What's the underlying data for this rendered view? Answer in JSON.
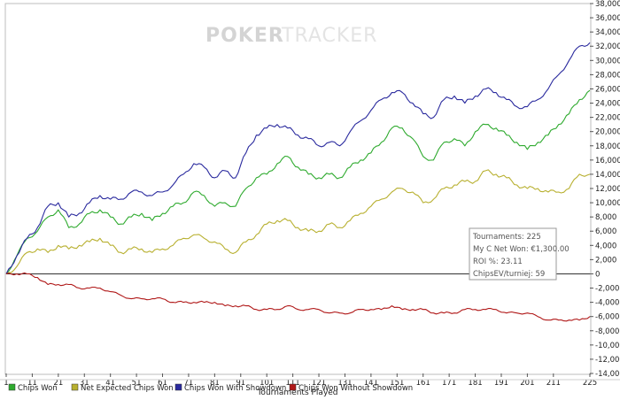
{
  "watermark": {
    "part1": "POKER",
    "part2": "TRACKER"
  },
  "info_box": {
    "lines": [
      "Tournaments: 225",
      "My C Net Won: €1,300.00",
      "ROI %: 23.11",
      "ChipsEV/turniej: 59"
    ]
  },
  "colors": {
    "chips_won": "#2eaa2e",
    "net_expected": "#b8b030",
    "with_showdown": "#2a2a9e",
    "without_showdown": "#b01818"
  },
  "chart_data": {
    "type": "line",
    "title": "",
    "xlabel": "Tournaments Played",
    "ylabel": "",
    "xlim": [
      1,
      225
    ],
    "ylim": [
      -14000,
      38000
    ],
    "x_ticks": [
      1,
      11,
      21,
      31,
      41,
      51,
      61,
      71,
      81,
      91,
      101,
      111,
      121,
      131,
      141,
      151,
      161,
      171,
      181,
      191,
      201,
      211,
      225
    ],
    "y_ticks": [
      -14000,
      -12000,
      -10000,
      -8000,
      -6000,
      -4000,
      -2000,
      0,
      2000,
      4000,
      6000,
      8000,
      10000,
      12000,
      14000,
      16000,
      18000,
      20000,
      22000,
      24000,
      26000,
      28000,
      30000,
      32000,
      34000,
      36000,
      38000
    ],
    "y_tick_labels": [
      "-14,000",
      "-12,000",
      "-10,000",
      "-8,000",
      "-6,000",
      "-4,000",
      "-2,000",
      "0",
      "2,000",
      "4,000",
      "6,000",
      "8,000",
      "10,000",
      "12,000",
      "14,000",
      "16,000",
      "18,000",
      "20,000",
      "22,000",
      "24,000",
      "26,000",
      "28,000",
      "30,000",
      "32,000",
      "34,000",
      "36,000",
      "38,000"
    ],
    "grid": false,
    "legend_position": "bottom",
    "series": [
      {
        "name": "Chips Won",
        "color": "#2eaa2e",
        "x": [
          1,
          5,
          9,
          13,
          17,
          21,
          25,
          29,
          33,
          37,
          41,
          45,
          49,
          53,
          57,
          61,
          65,
          69,
          73,
          77,
          81,
          85,
          89,
          93,
          97,
          101,
          105,
          109,
          113,
          117,
          121,
          125,
          129,
          133,
          137,
          141,
          145,
          149,
          153,
          157,
          161,
          165,
          169,
          173,
          177,
          181,
          185,
          189,
          193,
          197,
          201,
          205,
          209,
          213,
          217,
          221,
          225
        ],
        "values": [
          0,
          2500,
          5000,
          6000,
          8000,
          9000,
          6500,
          7000,
          8500,
          9000,
          8000,
          7000,
          8000,
          8500,
          7500,
          8500,
          9500,
          10000,
          11500,
          11000,
          9500,
          10000,
          9500,
          12000,
          13500,
          14000,
          15500,
          16500,
          15000,
          14000,
          13500,
          14000,
          13500,
          15000,
          16000,
          17000,
          18500,
          20500,
          20500,
          19000,
          16500,
          16000,
          18500,
          19000,
          18000,
          20000,
          21000,
          20500,
          19500,
          18500,
          17500,
          18500,
          19500,
          21000,
          22500,
          24500,
          25800
        ]
      },
      {
        "name": "Net Expected Chips Won",
        "color": "#b8b030",
        "x": [
          1,
          5,
          9,
          13,
          17,
          21,
          25,
          29,
          33,
          37,
          41,
          45,
          49,
          53,
          57,
          61,
          65,
          69,
          73,
          77,
          81,
          85,
          89,
          93,
          97,
          101,
          105,
          109,
          113,
          117,
          121,
          125,
          129,
          133,
          137,
          141,
          145,
          149,
          153,
          157,
          161,
          165,
          169,
          173,
          177,
          181,
          185,
          189,
          193,
          197,
          201,
          205,
          209,
          213,
          217,
          221,
          225
        ],
        "values": [
          0,
          1000,
          3000,
          3500,
          3000,
          4000,
          3500,
          4000,
          4500,
          5000,
          4000,
          3000,
          3500,
          3500,
          3000,
          3500,
          4000,
          5000,
          5500,
          5000,
          4500,
          3500,
          3000,
          4500,
          5500,
          7000,
          7500,
          7500,
          6500,
          6000,
          6000,
          7000,
          6500,
          7500,
          8500,
          9500,
          10500,
          11500,
          12000,
          11500,
          10000,
          10500,
          12000,
          12500,
          13000,
          13000,
          14500,
          14000,
          13500,
          12500,
          12000,
          12000,
          11500,
          11500,
          12000,
          14000,
          14000
        ]
      },
      {
        "name": "Chips Won With Showdown",
        "color": "#2a2a9e",
        "x": [
          1,
          5,
          9,
          13,
          17,
          21,
          25,
          29,
          33,
          37,
          41,
          45,
          49,
          53,
          57,
          61,
          65,
          69,
          73,
          77,
          81,
          85,
          89,
          93,
          97,
          101,
          105,
          109,
          113,
          117,
          121,
          125,
          129,
          133,
          137,
          141,
          145,
          149,
          153,
          157,
          161,
          165,
          169,
          173,
          177,
          181,
          185,
          189,
          193,
          197,
          201,
          205,
          209,
          213,
          217,
          221,
          225
        ],
        "values": [
          0,
          2500,
          5000,
          6500,
          9500,
          10000,
          8000,
          8500,
          10000,
          11000,
          10500,
          10500,
          11500,
          11500,
          11000,
          11500,
          12500,
          14000,
          15500,
          15000,
          13500,
          14500,
          13500,
          17000,
          19500,
          20500,
          21000,
          20500,
          19500,
          19000,
          18000,
          18500,
          18000,
          20000,
          21500,
          23000,
          24500,
          25500,
          25500,
          24000,
          22500,
          22000,
          24500,
          25000,
          24000,
          25000,
          26000,
          25500,
          24500,
          23500,
          23500,
          24500,
          26000,
          28000,
          30000,
          32000,
          32500
        ]
      },
      {
        "name": "Chips Won Without Showdown",
        "color": "#b01818",
        "x": [
          1,
          5,
          9,
          13,
          17,
          21,
          25,
          29,
          33,
          37,
          41,
          45,
          49,
          53,
          57,
          61,
          65,
          69,
          73,
          77,
          81,
          85,
          89,
          93,
          97,
          101,
          105,
          109,
          113,
          117,
          121,
          125,
          129,
          133,
          137,
          141,
          145,
          149,
          153,
          157,
          161,
          165,
          169,
          173,
          177,
          181,
          185,
          189,
          193,
          197,
          201,
          205,
          209,
          213,
          217,
          221,
          225
        ],
        "values": [
          0,
          0,
          0,
          -500,
          -1500,
          -1500,
          -1500,
          -2000,
          -2000,
          -2000,
          -2500,
          -3000,
          -3500,
          -3500,
          -3500,
          -3500,
          -4000,
          -4000,
          -4000,
          -4000,
          -4000,
          -4500,
          -4500,
          -4500,
          -5000,
          -5000,
          -5000,
          -4500,
          -5000,
          -5000,
          -5000,
          -5500,
          -5500,
          -5500,
          -5000,
          -5000,
          -5000,
          -4500,
          -5000,
          -5000,
          -5000,
          -5500,
          -5500,
          -5500,
          -5000,
          -5000,
          -5000,
          -5000,
          -5500,
          -5500,
          -5500,
          -6000,
          -6500,
          -6500,
          -6500,
          -6500,
          -6000
        ]
      }
    ]
  }
}
